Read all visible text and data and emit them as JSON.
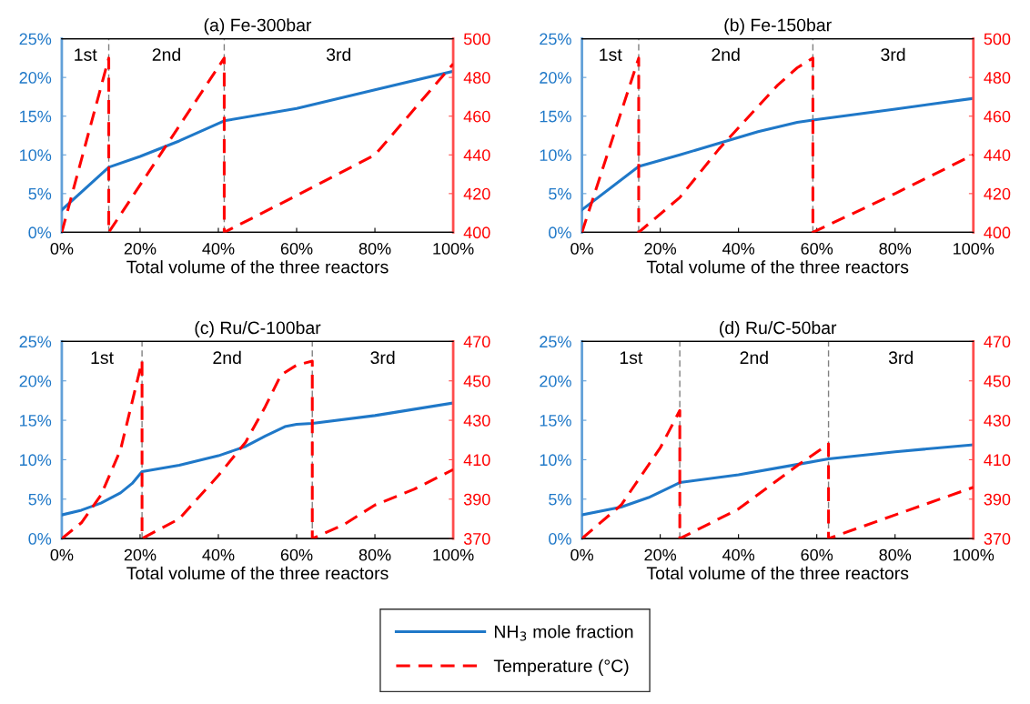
{
  "chart_data": [
    {
      "type": "line",
      "title": "(a) Fe-300bar",
      "xlabel": "Total volume of the three reactors",
      "grid": false,
      "xlim": [
        0,
        100
      ],
      "xticks": [
        {
          "value": 0,
          "label": "0%"
        },
        {
          "value": 20,
          "label": "20%"
        },
        {
          "value": 40,
          "label": "40%"
        },
        {
          "value": 60,
          "label": "60%"
        },
        {
          "value": 80,
          "label": "80%"
        },
        {
          "value": 100,
          "label": "100%"
        }
      ],
      "ylim": [
        0,
        25
      ],
      "yticks": [
        {
          "value": 0,
          "label": "0%"
        },
        {
          "value": 5,
          "label": "5%"
        },
        {
          "value": 10,
          "label": "10%"
        },
        {
          "value": 15,
          "label": "15%"
        },
        {
          "value": 20,
          "label": "20%"
        },
        {
          "value": 25,
          "label": "25%"
        }
      ],
      "y2lim": [
        400,
        500
      ],
      "y2ticks": [
        400,
        420,
        440,
        460,
        480,
        500
      ],
      "ref_lines": [
        {
          "axis": "x",
          "value": 12,
          "color": "#808080",
          "line_style": "dashed"
        },
        {
          "axis": "x",
          "value": 41.5,
          "color": "#808080",
          "line_style": "dashed"
        }
      ],
      "annotations": [
        "1st",
        "2nd",
        "3rd"
      ],
      "series": [
        {
          "color": "#1f78c8",
          "line_style": "solid",
          "x": [
            0,
            12,
            20,
            30,
            41.5,
            60,
            80,
            100
          ],
          "values": [
            2.9,
            8.4,
            9.8,
            11.8,
            14.4,
            16.0,
            18.4,
            20.8
          ]
        },
        {
          "color": "#ff0000",
          "line_style": "dashed",
          "axis": "y2",
          "x": [
            0,
            12,
            12,
            41.5,
            41.5,
            60,
            80,
            100
          ],
          "values": [
            400,
            490,
            400,
            490,
            400,
            419,
            440,
            487
          ]
        }
      ]
    },
    {
      "type": "line",
      "title": "(b) Fe-150bar",
      "xlabel": "Total volume of the three reactors",
      "grid": false,
      "xlim": [
        0,
        100
      ],
      "xticks": [
        {
          "value": 0,
          "label": "0%"
        },
        {
          "value": 20,
          "label": "20%"
        },
        {
          "value": 40,
          "label": "40%"
        },
        {
          "value": 60,
          "label": "60%"
        },
        {
          "value": 80,
          "label": "80%"
        },
        {
          "value": 100,
          "label": "100%"
        }
      ],
      "ylim": [
        0,
        25
      ],
      "yticks": [
        {
          "value": 0,
          "label": "0%"
        },
        {
          "value": 5,
          "label": "5%"
        },
        {
          "value": 10,
          "label": "10%"
        },
        {
          "value": 15,
          "label": "15%"
        },
        {
          "value": 20,
          "label": "20%"
        },
        {
          "value": 25,
          "label": "25%"
        }
      ],
      "y2lim": [
        400,
        500
      ],
      "y2ticks": [
        400,
        420,
        440,
        460,
        480,
        500
      ],
      "ref_lines": [
        {
          "axis": "x",
          "value": 14.5,
          "color": "#808080",
          "line_style": "dashed"
        },
        {
          "axis": "x",
          "value": 59,
          "color": "#808080",
          "line_style": "dashed"
        }
      ],
      "annotations": [
        "1st",
        "2nd",
        "3rd"
      ],
      "series": [
        {
          "color": "#1f78c8",
          "line_style": "solid",
          "x": [
            0,
            14.5,
            25,
            35,
            45,
            55,
            59,
            80,
            100
          ],
          "values": [
            2.9,
            8.5,
            10.0,
            11.5,
            13.0,
            14.2,
            14.5,
            15.9,
            17.3
          ]
        },
        {
          "color": "#ff0000",
          "line_style": "dashed",
          "axis": "y2",
          "x": [
            0,
            14.5,
            14.5,
            25,
            35,
            45,
            50,
            55,
            59,
            59,
            80,
            100
          ],
          "values": [
            400,
            490,
            400,
            418,
            443,
            465,
            476,
            485,
            490,
            400,
            420,
            440
          ]
        }
      ]
    },
    {
      "type": "line",
      "title": "(c) Ru/C-100bar",
      "xlabel": "Total volume of the three reactors",
      "legend": "bottom",
      "grid": false,
      "xlim": [
        0,
        100
      ],
      "xticks": [
        {
          "value": 0,
          "label": "0%"
        },
        {
          "value": 20,
          "label": "20%"
        },
        {
          "value": 40,
          "label": "40%"
        },
        {
          "value": 60,
          "label": "60%"
        },
        {
          "value": 80,
          "label": "80%"
        },
        {
          "value": 100,
          "label": "100%"
        }
      ],
      "ylim": [
        0,
        25
      ],
      "yticks": [
        {
          "value": 0,
          "label": "0%"
        },
        {
          "value": 5,
          "label": "5%"
        },
        {
          "value": 10,
          "label": "10%"
        },
        {
          "value": 15,
          "label": "15%"
        },
        {
          "value": 20,
          "label": "20%"
        },
        {
          "value": 25,
          "label": "25%"
        }
      ],
      "y2lim": [
        370,
        470
      ],
      "y2ticks": [
        370,
        390,
        410,
        430,
        450,
        470
      ],
      "ref_lines": [
        {
          "axis": "x",
          "value": 20.5,
          "color": "#808080",
          "line_style": "dashed"
        },
        {
          "axis": "x",
          "value": 64,
          "color": "#808080",
          "line_style": "dashed"
        }
      ],
      "annotations": [
        "1st",
        "2nd",
        "3rd"
      ],
      "series": [
        {
          "name": "NH$_{3}$ mole fraction",
          "color": "#1f78c8",
          "line_style": "solid",
          "x": [
            0,
            5,
            10,
            15,
            18,
            20.5,
            30,
            40,
            47,
            52,
            57,
            60,
            64,
            80,
            100
          ],
          "values": [
            3.0,
            3.6,
            4.5,
            5.8,
            7.0,
            8.5,
            9.3,
            10.5,
            11.7,
            13.0,
            14.2,
            14.5,
            14.6,
            15.6,
            17.2
          ]
        },
        {
          "name": "Temperature (°C)",
          "color": "#ff0000",
          "line_style": "dashed",
          "axis": "y2",
          "x": [
            0,
            5,
            10,
            15,
            20.5,
            20.5,
            30,
            40,
            47,
            52,
            56,
            60,
            64,
            64,
            72,
            80,
            90,
            100
          ],
          "values": [
            370,
            378,
            392,
            415,
            460,
            370,
            380,
            402,
            419,
            437,
            453,
            458,
            460,
            370,
            377,
            387,
            395,
            405
          ]
        }
      ]
    },
    {
      "type": "line",
      "title": "(d) Ru/C-50bar",
      "xlabel": "Total volume of the three reactors",
      "grid": false,
      "xlim": [
        0,
        100
      ],
      "xticks": [
        {
          "value": 0,
          "label": "0%"
        },
        {
          "value": 20,
          "label": "20%"
        },
        {
          "value": 40,
          "label": "40%"
        },
        {
          "value": 60,
          "label": "60%"
        },
        {
          "value": 80,
          "label": "80%"
        },
        {
          "value": 100,
          "label": "100%"
        }
      ],
      "ylim": [
        0,
        25
      ],
      "yticks": [
        {
          "value": 0,
          "label": "0%"
        },
        {
          "value": 5,
          "label": "5%"
        },
        {
          "value": 10,
          "label": "10%"
        },
        {
          "value": 15,
          "label": "15%"
        },
        {
          "value": 20,
          "label": "20%"
        },
        {
          "value": 25,
          "label": "25%"
        }
      ],
      "y2lim": [
        370,
        470
      ],
      "y2ticks": [
        370,
        390,
        410,
        430,
        450,
        470
      ],
      "ref_lines": [
        {
          "axis": "x",
          "value": 25,
          "color": "#808080",
          "line_style": "dashed"
        },
        {
          "axis": "x",
          "value": 63,
          "color": "#808080",
          "line_style": "dashed"
        }
      ],
      "annotations": [
        "1st",
        "2nd",
        "3rd"
      ],
      "series": [
        {
          "color": "#1f78c8",
          "line_style": "solid",
          "x": [
            0,
            10,
            17,
            25,
            40,
            55,
            63,
            80,
            100
          ],
          "values": [
            3.0,
            4.0,
            5.2,
            7.1,
            8.1,
            9.4,
            10.1,
            11.0,
            11.9
          ]
        },
        {
          "color": "#ff0000",
          "line_style": "dashed",
          "axis": "y2",
          "x": [
            0,
            10,
            20,
            25,
            25,
            40,
            55,
            63,
            63,
            80,
            100
          ],
          "values": [
            370,
            387,
            416,
            435,
            370,
            385,
            407,
            418,
            370,
            382,
            396
          ]
        }
      ]
    }
  ]
}
